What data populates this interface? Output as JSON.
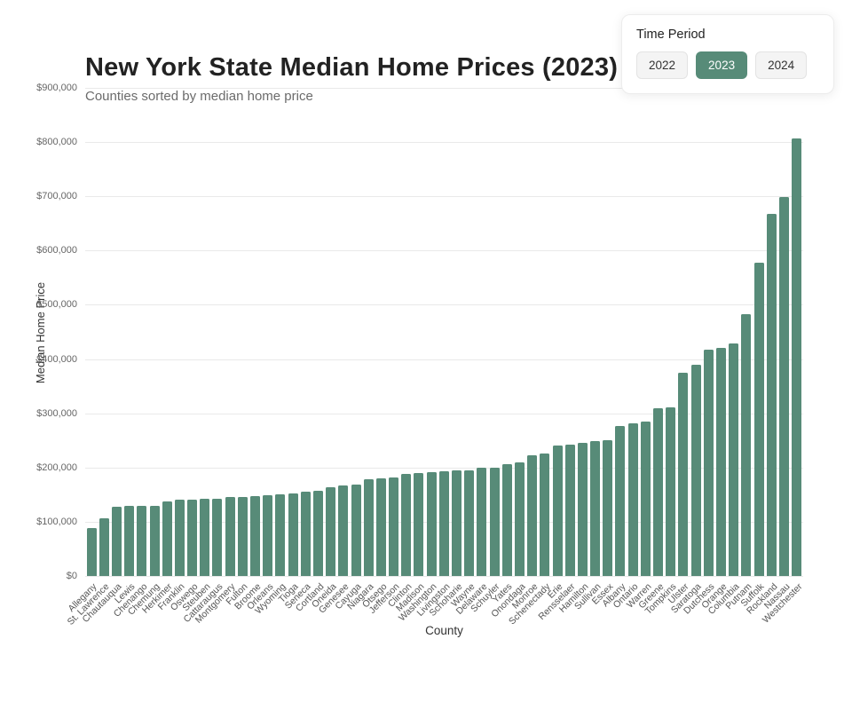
{
  "header": {
    "title": "New York State Median Home Prices (2023)",
    "subtitle": "Counties sorted by median home price"
  },
  "controls": {
    "label": "Time Period",
    "options": [
      {
        "label": "2022",
        "selected": false
      },
      {
        "label": "2023",
        "selected": true
      },
      {
        "label": "2024",
        "selected": false
      }
    ]
  },
  "colors": {
    "bar": "#578b78",
    "selected_button": "#578b78",
    "gridline": "#e9e9e9"
  },
  "chart_data": {
    "type": "bar",
    "title": "New York State Median Home Prices (2023)",
    "xlabel": "County",
    "ylabel": "Median Home Price",
    "ylim": [
      0,
      900000
    ],
    "grid": true,
    "categories": [
      "Allegany",
      "St. Lawrence",
      "Chautauqua",
      "Lewis",
      "Chenango",
      "Chemung",
      "Herkimer",
      "Franklin",
      "Oswego",
      "Steuben",
      "Cattaraugus",
      "Montgomery",
      "Fulton",
      "Broome",
      "Orleans",
      "Wyoming",
      "Tioga",
      "Seneca",
      "Cortland",
      "Oneida",
      "Genesee",
      "Cayuga",
      "Niagara",
      "Otsego",
      "Jefferson",
      "Clinton",
      "Madison",
      "Washington",
      "Livingston",
      "Schoharie",
      "Wayne",
      "Delaware",
      "Schuyler",
      "Yates",
      "Onondaga",
      "Monroe",
      "Schenectady",
      "Erie",
      "Rensselaer",
      "Hamilton",
      "Sullivan",
      "Essex",
      "Albany",
      "Ontario",
      "Warren",
      "Greene",
      "Tompkins",
      "Ulster",
      "Saratoga",
      "Dutchess",
      "Orange",
      "Columbia",
      "Putnam",
      "Suffolk",
      "Rockland",
      "Nassau",
      "Westchester"
    ],
    "values": [
      88000,
      107000,
      128000,
      128500,
      129000,
      130000,
      138000,
      140000,
      141000,
      142000,
      143000,
      145000,
      146000,
      148000,
      149000,
      150000,
      152000,
      155000,
      157000,
      163000,
      167000,
      169000,
      179000,
      180000,
      182000,
      189000,
      190000,
      191000,
      193000,
      194000,
      195000,
      199000,
      200000,
      207000,
      210000,
      222000,
      226000,
      240000,
      243000,
      245000,
      248000,
      250000,
      276000,
      282000,
      284000,
      309000,
      311000,
      374000,
      389000,
      417000,
      420000,
      429000,
      482000,
      577000,
      667000,
      699000,
      807000
    ],
    "yticks": [
      {
        "value": 0,
        "label": "$0"
      },
      {
        "value": 100000,
        "label": "$100,000"
      },
      {
        "value": 200000,
        "label": "$200,000"
      },
      {
        "value": 300000,
        "label": "$300,000"
      },
      {
        "value": 400000,
        "label": "$400,000"
      },
      {
        "value": 500000,
        "label": "$500,000"
      },
      {
        "value": 600000,
        "label": "$600,000"
      },
      {
        "value": 700000,
        "label": "$700,000"
      },
      {
        "value": 800000,
        "label": "$800,000"
      },
      {
        "value": 900000,
        "label": "$900,000"
      }
    ]
  }
}
